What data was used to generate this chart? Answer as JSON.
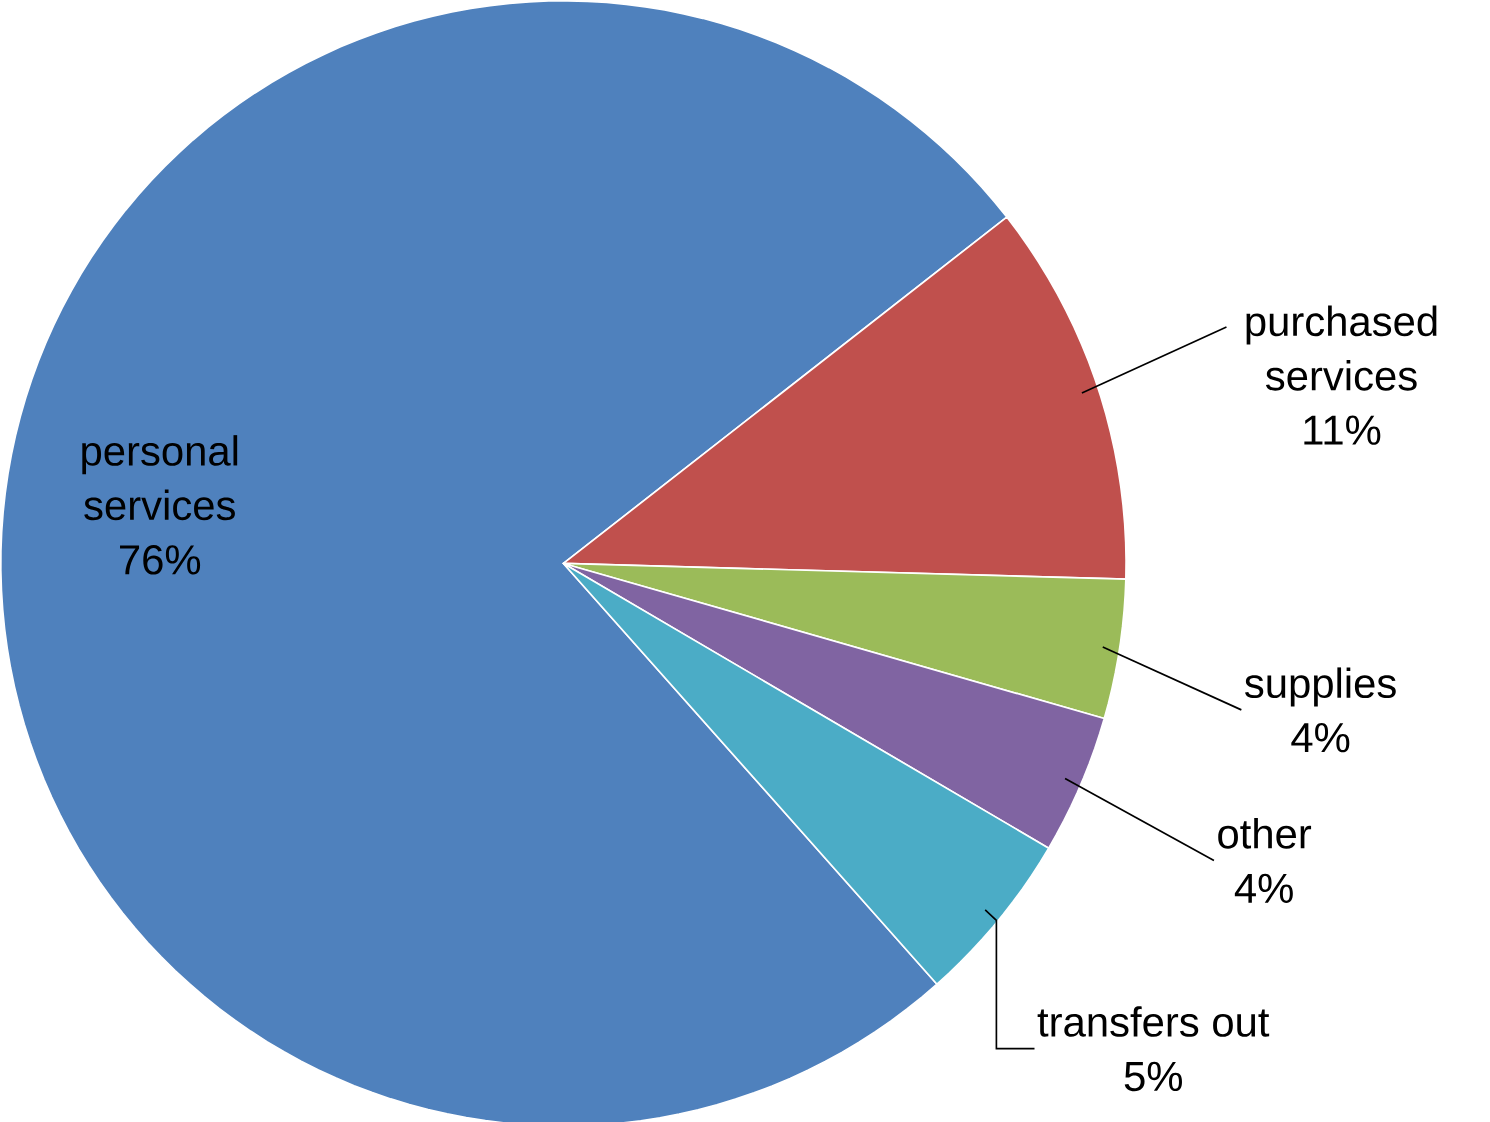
{
  "chart_data": {
    "type": "pie",
    "categories": [
      "personal services",
      "purchased services",
      "supplies",
      "other",
      "transfers out"
    ],
    "values": [
      76,
      11,
      4,
      4,
      5
    ],
    "value_labels": [
      "76%",
      "11%",
      "4%",
      "4%",
      "5%"
    ],
    "colors": [
      "#4f81bd",
      "#c0504d",
      "#9bbb59",
      "#8064a2",
      "#4bacc6"
    ]
  }
}
